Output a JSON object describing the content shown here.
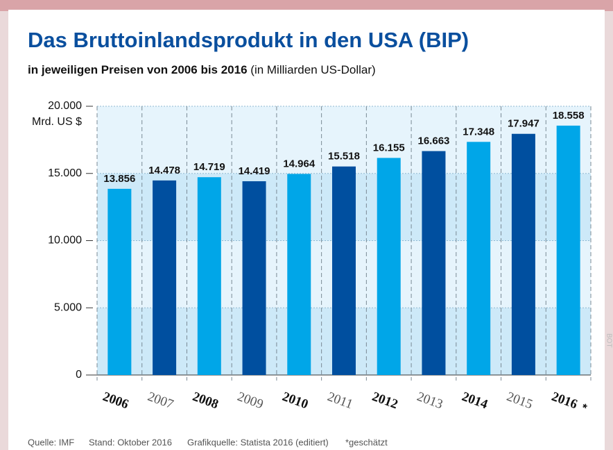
{
  "chart_data": {
    "type": "bar",
    "title": "Das Bruttoinlandsprodukt in den USA (BIP)",
    "subtitle": "in jeweiligen Preisen von 2006 bis 2016",
    "subtitle_note": "(in Milliarden US-Dollar)",
    "y_label": "Mrd. US $",
    "categories": [
      "2006",
      "2007",
      "2008",
      "2009",
      "2010",
      "2011",
      "2012",
      "2013",
      "2014",
      "2015",
      "2016"
    ],
    "category_mark": "*",
    "values": [
      13856,
      14478,
      14719,
      14419,
      14964,
      15518,
      16155,
      16663,
      17348,
      17947,
      18558
    ],
    "value_labels": [
      "13.856",
      "14.478",
      "14.719",
      "14.419",
      "14.964",
      "15.518",
      "16.155",
      "16.663",
      "17.348",
      "17.947",
      "18.558"
    ],
    "colors": [
      "#00a6e8",
      "#004f9f",
      "#00a6e8",
      "#004f9f",
      "#00a6e8",
      "#004f9f",
      "#00a6e8",
      "#004f9f",
      "#00a6e8",
      "#004f9f",
      "#00a6e8"
    ],
    "ylim": [
      0,
      20000
    ],
    "yticks": [
      0,
      {
        "value": 5000,
        "label": "5.000"
      },
      {
        "value": 10000,
        "label": "10.000"
      },
      {
        "value": 15000,
        "label": "15.000"
      },
      {
        "value": 20000,
        "label": "20.000"
      }
    ],
    "grid": true,
    "footer": [
      "Quelle: IMF",
      "Stand: Oktober 2016",
      "Grafikquelle: Statista 2016 (editiert)",
      "*geschätzt"
    ],
    "side_text": "BOT"
  }
}
